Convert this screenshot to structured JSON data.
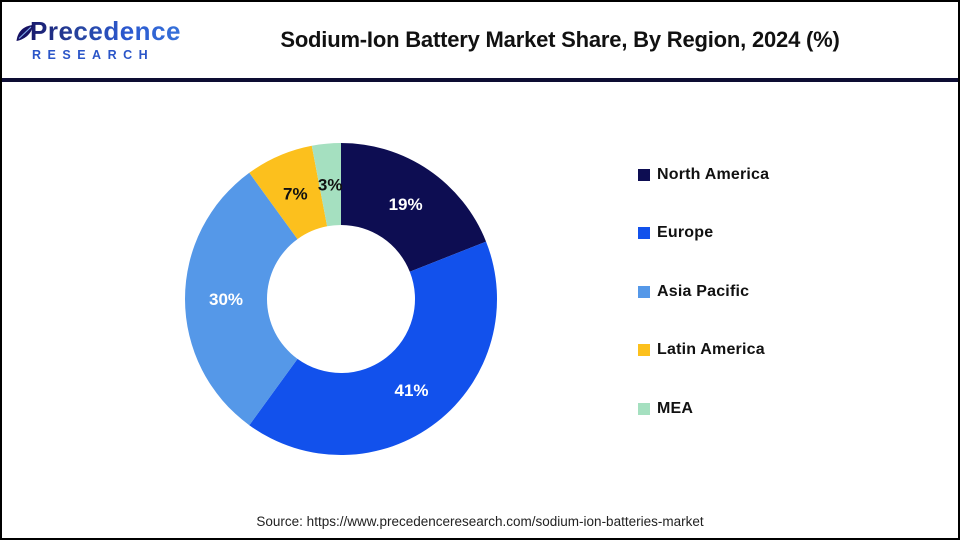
{
  "header": {
    "logo_line1": "Precedence",
    "logo_line2": "RESEARCH",
    "title": "Sodium-Ion Battery Market Share, By Region, 2024 (%)"
  },
  "chart_data": {
    "type": "pie",
    "subtype": "donut",
    "title": "Sodium-Ion Battery Market Share, By Region, 2024 (%)",
    "categories": [
      "North America",
      "Europe",
      "Asia Pacific",
      "Latin America",
      "MEA"
    ],
    "values": [
      19,
      41,
      30,
      7,
      3
    ],
    "unit": "%",
    "labels": [
      "19%",
      "41%",
      "30%",
      "7%",
      "3%"
    ],
    "colors": [
      "#0d0d52",
      "#1251ec",
      "#5598e8",
      "#fcc01d",
      "#a5e0c0"
    ],
    "label_colors": [
      "#ffffff",
      "#ffffff",
      "#ffffff",
      "#111111",
      "#111111"
    ],
    "start_angle_deg": 0,
    "direction": "clockwise",
    "legend_position": "right"
  },
  "legend": {
    "items": [
      {
        "label": "North America",
        "color": "#0d0d52"
      },
      {
        "label": "Europe",
        "color": "#1251ec"
      },
      {
        "label": "Asia Pacific",
        "color": "#5598e8"
      },
      {
        "label": "Latin America",
        "color": "#fcc01d"
      },
      {
        "label": "MEA",
        "color": "#a5e0c0"
      }
    ]
  },
  "footer": {
    "source": "Source: https://www.precedenceresearch.com/sodium-ion-batteries-market"
  },
  "theme": {
    "divider_color": "#0d0d33",
    "border_color": "#000000",
    "research_blue": "#2a55c8"
  }
}
